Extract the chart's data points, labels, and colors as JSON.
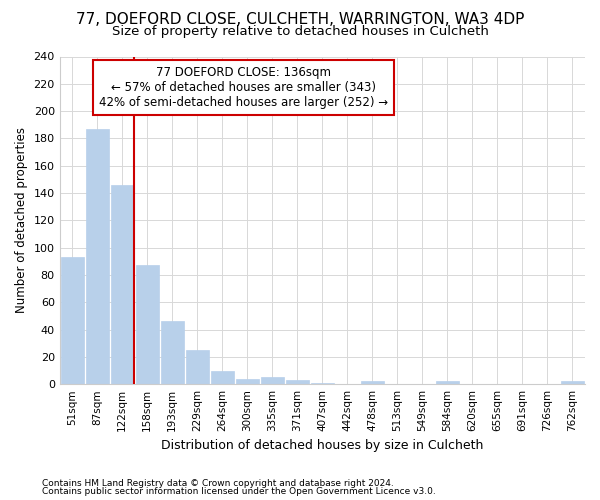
{
  "title1": "77, DOEFORD CLOSE, CULCHETH, WARRINGTON, WA3 4DP",
  "title2": "Size of property relative to detached houses in Culcheth",
  "xlabel": "Distribution of detached houses by size in Culcheth",
  "ylabel": "Number of detached properties",
  "bar_labels": [
    "51sqm",
    "87sqm",
    "122sqm",
    "158sqm",
    "193sqm",
    "229sqm",
    "264sqm",
    "300sqm",
    "335sqm",
    "371sqm",
    "407sqm",
    "442sqm",
    "478sqm",
    "513sqm",
    "549sqm",
    "584sqm",
    "620sqm",
    "655sqm",
    "691sqm",
    "726sqm",
    "762sqm"
  ],
  "bar_values": [
    93,
    187,
    146,
    87,
    46,
    25,
    10,
    4,
    5,
    3,
    1,
    0,
    2,
    0,
    0,
    2,
    0,
    0,
    0,
    0,
    2
  ],
  "bar_color": "#b8d0ea",
  "bar_edgecolor": "#b8d0ea",
  "vline_color": "#cc0000",
  "ylim": [
    0,
    240
  ],
  "yticks": [
    0,
    20,
    40,
    60,
    80,
    100,
    120,
    140,
    160,
    180,
    200,
    220,
    240
  ],
  "annotation_title": "77 DOEFORD CLOSE: 136sqm",
  "annotation_line1": "← 57% of detached houses are smaller (343)",
  "annotation_line2": "42% of semi-detached houses are larger (252) →",
  "annotation_box_color": "#cc0000",
  "footer1": "Contains HM Land Registry data © Crown copyright and database right 2024.",
  "footer2": "Contains public sector information licensed under the Open Government Licence v3.0.",
  "bg_color": "#ffffff",
  "grid_color": "#d8d8d8",
  "title1_fontsize": 11,
  "title2_fontsize": 9.5
}
